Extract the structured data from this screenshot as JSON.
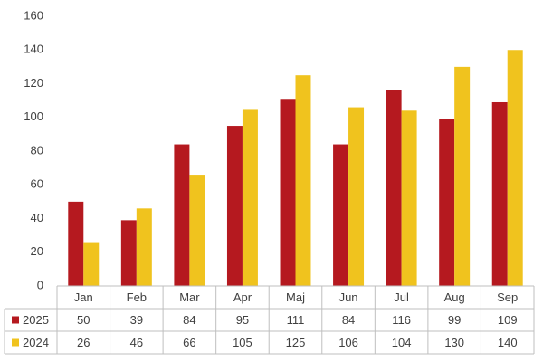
{
  "chart_data": {
    "type": "bar",
    "categories": [
      "Jan",
      "Feb",
      "Mar",
      "Apr",
      "Maj",
      "Jun",
      "Jul",
      "Aug",
      "Sep"
    ],
    "series": [
      {
        "name": "2025",
        "color": "#b5191f",
        "values": [
          50,
          39,
          84,
          95,
          111,
          84,
          116,
          99,
          109
        ]
      },
      {
        "name": "2024",
        "color": "#f0c31e",
        "values": [
          26,
          46,
          66,
          105,
          125,
          106,
          104,
          130,
          140
        ]
      }
    ],
    "ylim": [
      0,
      160
    ],
    "yticks": [
      0,
      20,
      40,
      60,
      80,
      100,
      120,
      140,
      160
    ],
    "grid": false
  }
}
